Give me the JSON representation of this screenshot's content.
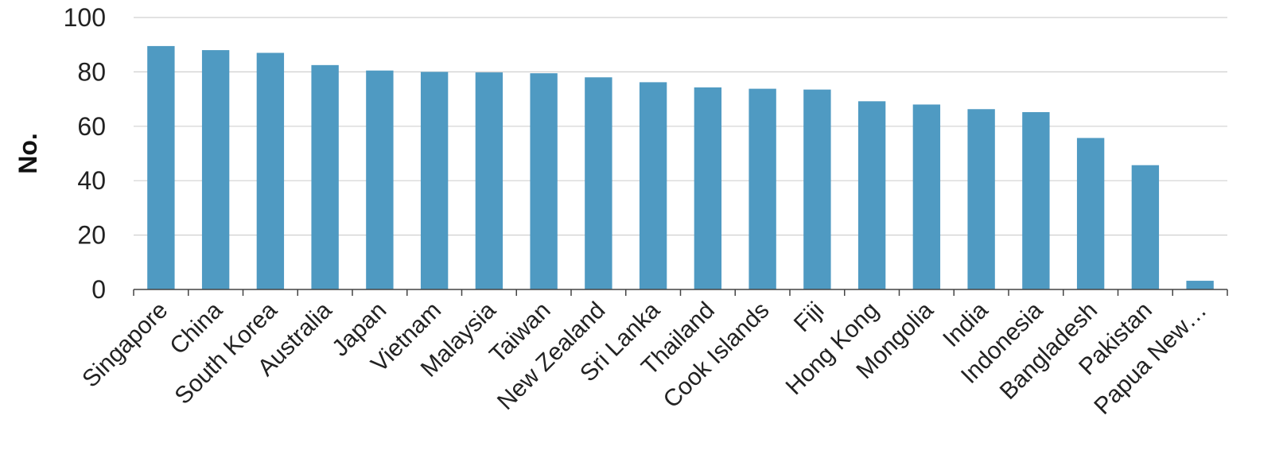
{
  "chart_data": {
    "type": "bar",
    "ylabel": "No.",
    "ylim": [
      0,
      100
    ],
    "yticks": [
      0,
      20,
      40,
      60,
      80,
      100
    ],
    "grid": true,
    "bar_color": "#4f9ac2",
    "categories": [
      "Singapore",
      "China",
      "South Korea",
      "Australia",
      "Japan",
      "Vietnam",
      "Malaysia",
      "Taiwan",
      "New Zealand",
      "Sri Lanka",
      "Thailand",
      "Cook Islands",
      "Fiji",
      "Hong Kong",
      "Mongolia",
      "India",
      "Indonesia",
      "Bangladesh",
      "Pakistan",
      "Papua New…"
    ],
    "values": [
      89.5,
      88,
      87,
      82.5,
      80.5,
      80,
      79.8,
      79.5,
      78,
      76.2,
      74.3,
      73.8,
      73.5,
      69.2,
      68,
      66.3,
      65.2,
      55.7,
      45.7,
      3.2
    ]
  }
}
